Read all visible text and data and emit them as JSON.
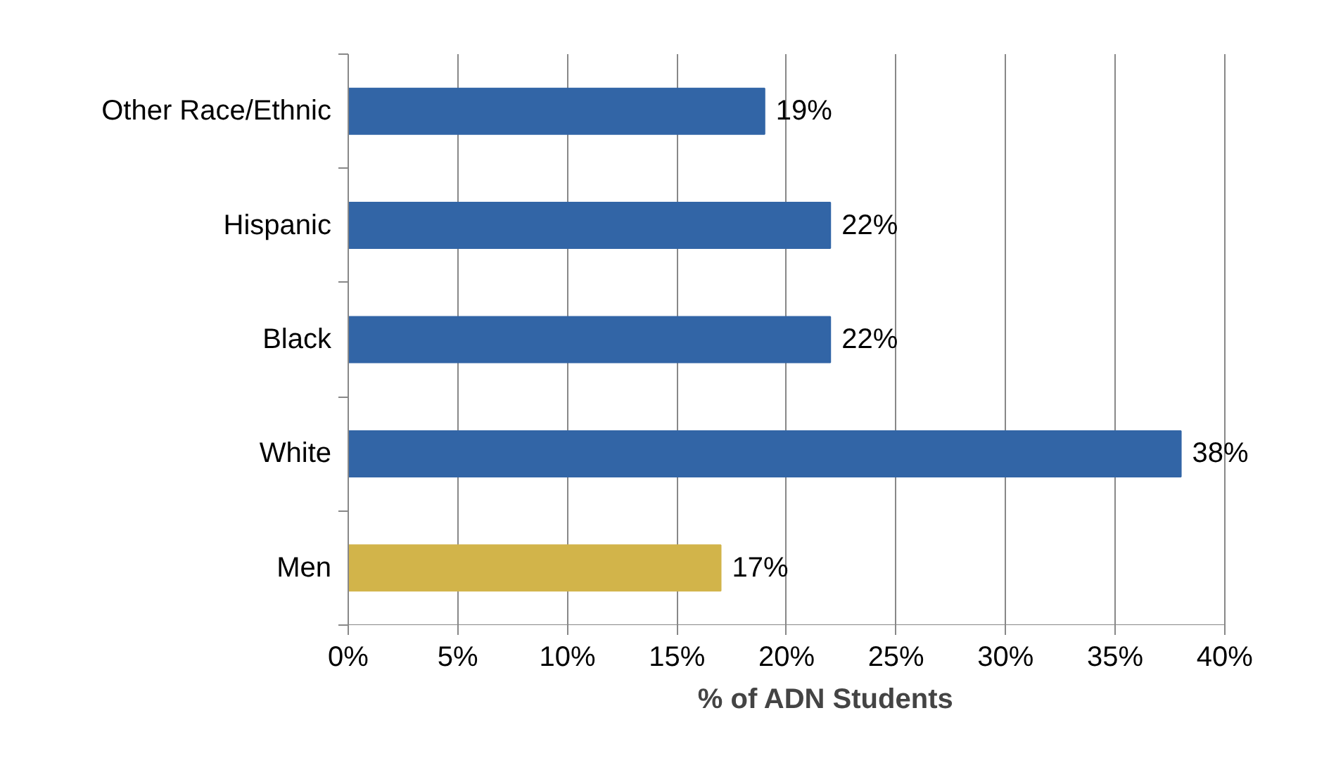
{
  "chart_data": {
    "type": "bar",
    "orientation": "horizontal",
    "xlabel": "% of ADN Students",
    "categories": [
      "Other Race/Ethnic",
      "Hispanic",
      "Black",
      "White",
      "Men"
    ],
    "values": [
      19,
      22,
      22,
      38,
      17
    ],
    "colors": [
      "#3265a6",
      "#3265a6",
      "#3265a6",
      "#3265a6",
      "#d2b44a"
    ],
    "value_labels": [
      "19%",
      "22%",
      "22%",
      "38%",
      "17%"
    ],
    "xlim": [
      0,
      40
    ],
    "xticks": [
      {
        "value": 0,
        "label": "0%"
      },
      {
        "value": 5,
        "label": "5%"
      },
      {
        "value": 10,
        "label": "10%"
      },
      {
        "value": 15,
        "label": "15%"
      },
      {
        "value": 20,
        "label": "20%"
      },
      {
        "value": 25,
        "label": "25%"
      },
      {
        "value": 30,
        "label": "30%"
      },
      {
        "value": 35,
        "label": "35%"
      },
      {
        "value": 40,
        "label": "40%"
      }
    ],
    "grid": "x"
  }
}
